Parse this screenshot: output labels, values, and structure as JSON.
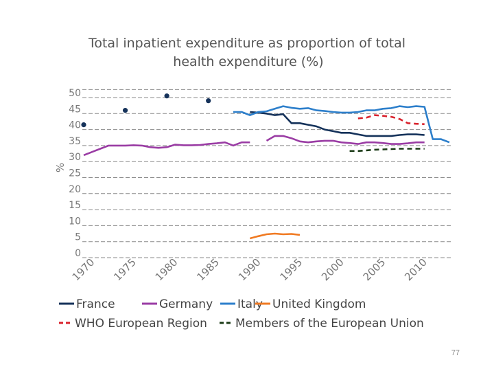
{
  "colors": {
    "france": "#15325a",
    "germany": "#9a3ca4",
    "italy": "#2d7fcb",
    "uk": "#f07a22",
    "who": "#d9232d",
    "eu": "#1a3a16",
    "grid": "#8a8a8a",
    "dot": "#15325a"
  },
  "page": {
    "number": "77"
  },
  "chart_data": {
    "type": "line",
    "title": [
      "Total inpatient expenditure as proportion of total",
      "health expenditure (%)"
    ],
    "xlabel": "",
    "ylabel": "%",
    "xlim": [
      1970,
      2014
    ],
    "ylim": [
      0,
      50
    ],
    "yticks": [
      0,
      5,
      10,
      15,
      20,
      25,
      30,
      35,
      40,
      45,
      50
    ],
    "xticks": [
      "1970",
      "1975",
      "1980",
      "1985",
      "1990",
      "1995",
      "2000",
      "2005",
      "2010"
    ],
    "legend_position": "bottom",
    "series": [
      {
        "key": "france",
        "name": "France",
        "style": "solid",
        "dots": [
          [
            1970,
            40
          ],
          [
            1975,
            44.5
          ],
          [
            1980,
            49
          ],
          [
            1985,
            47.5
          ]
        ],
        "points": [
          [
            1990,
            44
          ],
          [
            1991,
            43.8
          ],
          [
            1992,
            43.5
          ],
          [
            1993,
            43
          ],
          [
            1994,
            43.3
          ],
          [
            1995,
            40.5
          ],
          [
            1996,
            40.5
          ],
          [
            1997,
            40
          ],
          [
            1998,
            39.5
          ],
          [
            1999,
            38.5
          ],
          [
            2000,
            38
          ],
          [
            2001,
            37.5
          ],
          [
            2002,
            37.5
          ],
          [
            2003,
            37
          ],
          [
            2004,
            36.5
          ],
          [
            2005,
            36.5
          ],
          [
            2006,
            36.5
          ],
          [
            2007,
            36.5
          ],
          [
            2008,
            36.8
          ],
          [
            2009,
            37
          ],
          [
            2010,
            37
          ],
          [
            2011,
            36.8
          ]
        ]
      },
      {
        "key": "germany",
        "name": "Germany",
        "style": "solid",
        "points": [
          [
            1970,
            30.5
          ],
          [
            1971,
            31.5
          ],
          [
            1972,
            32.5
          ],
          [
            1973,
            33.5
          ],
          [
            1974,
            33.5
          ],
          [
            1975,
            33.5
          ],
          [
            1976,
            33.6
          ],
          [
            1977,
            33.5
          ],
          [
            1978,
            33
          ],
          [
            1979,
            32.8
          ],
          [
            1980,
            33
          ],
          [
            1981,
            33.8
          ],
          [
            1982,
            33.6
          ],
          [
            1983,
            33.6
          ],
          [
            1984,
            33.7
          ],
          [
            1985,
            34
          ],
          [
            1986,
            34.2
          ],
          [
            1987,
            34.5
          ],
          [
            1988,
            33.5
          ],
          [
            1989,
            34.5
          ],
          [
            1990,
            34.5
          ],
          null,
          [
            1992,
            35
          ],
          [
            1993,
            36.5
          ],
          [
            1994,
            36.5
          ],
          [
            1995,
            35.8
          ],
          [
            1996,
            34.8
          ],
          [
            1997,
            34.5
          ],
          [
            1998,
            34.8
          ],
          [
            1999,
            35
          ],
          [
            2000,
            35
          ],
          [
            2001,
            34.5
          ],
          [
            2002,
            34.3
          ],
          [
            2003,
            34
          ],
          [
            2004,
            34.5
          ],
          [
            2005,
            34.5
          ],
          [
            2006,
            34.3
          ],
          [
            2007,
            34
          ],
          [
            2008,
            34
          ],
          [
            2009,
            34.2
          ],
          [
            2010,
            34.5
          ],
          [
            2011,
            34.5
          ]
        ]
      },
      {
        "key": "italy",
        "name": "Italy",
        "style": "solid",
        "points": [
          [
            1988,
            44
          ],
          [
            1989,
            44
          ],
          [
            1990,
            43
          ],
          [
            1991,
            44
          ],
          [
            1992,
            44.2
          ],
          [
            1993,
            45
          ],
          [
            1994,
            45.8
          ],
          [
            1995,
            45.3
          ],
          [
            1996,
            45
          ],
          [
            1997,
            45.2
          ],
          [
            1998,
            44.5
          ],
          [
            1999,
            44.3
          ],
          [
            2000,
            44
          ],
          [
            2001,
            43.8
          ],
          [
            2002,
            43.8
          ],
          [
            2003,
            44
          ],
          [
            2004,
            44.5
          ],
          [
            2005,
            44.5
          ],
          [
            2006,
            45
          ],
          [
            2007,
            45.2
          ],
          [
            2008,
            45.8
          ],
          [
            2009,
            45.5
          ],
          [
            2010,
            45.8
          ],
          [
            2011,
            45.6
          ],
          [
            2012,
            35.5
          ],
          [
            2013,
            35.5
          ],
          [
            2014,
            34.5
          ]
        ]
      },
      {
        "key": "uk",
        "name": "United Kingdom",
        "style": "solid",
        "points": [
          [
            1990,
            4.5
          ],
          [
            1991,
            5.2
          ],
          [
            1992,
            5.8
          ],
          [
            1993,
            6
          ],
          [
            1994,
            5.8
          ],
          [
            1995,
            5.9
          ],
          [
            1996,
            5.6
          ]
        ]
      },
      {
        "key": "who",
        "name": "WHO European Region",
        "style": "dashed",
        "points": [
          [
            2003,
            42
          ],
          [
            2004,
            42.2
          ],
          [
            2005,
            43
          ],
          [
            2006,
            42.8
          ],
          [
            2007,
            42.5
          ],
          [
            2008,
            41.8
          ],
          [
            2009,
            40.5
          ],
          [
            2010,
            40.3
          ],
          [
            2011,
            40.2
          ]
        ]
      },
      {
        "key": "eu",
        "name": "Members of the European Union",
        "style": "dashed",
        "points": [
          [
            2002,
            31.8
          ],
          [
            2003,
            31.8
          ],
          [
            2004,
            32
          ],
          [
            2005,
            32.2
          ],
          [
            2006,
            32.3
          ],
          [
            2007,
            32.4
          ],
          [
            2008,
            32.5
          ],
          [
            2009,
            32.5
          ],
          [
            2010,
            32.5
          ],
          [
            2011,
            32.5
          ]
        ]
      }
    ]
  }
}
